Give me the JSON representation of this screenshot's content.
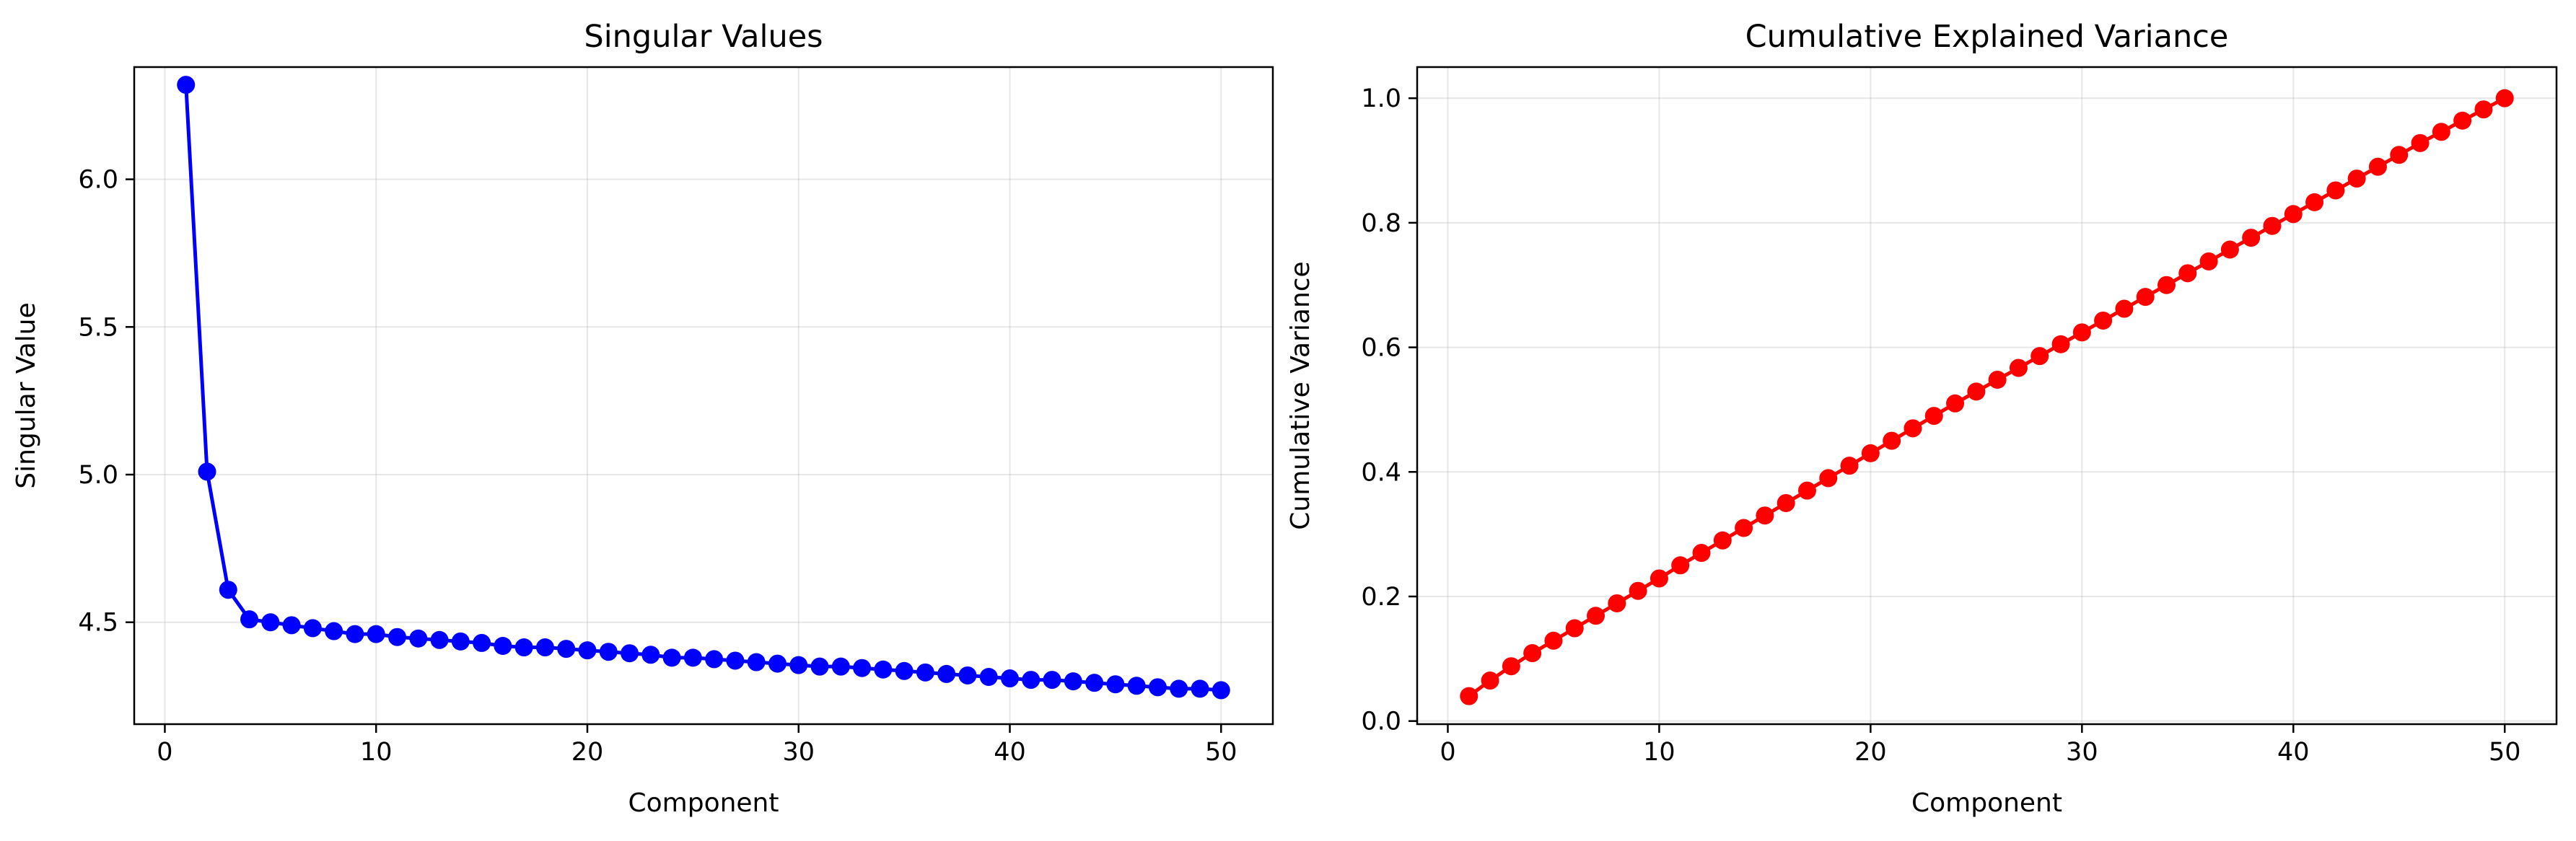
{
  "chart_data": [
    {
      "type": "line",
      "title": "Singular Values",
      "xlabel": "Component",
      "ylabel": "Singular Value",
      "xlim": [
        -1.45,
        52.45
      ],
      "ylim": [
        4.155,
        6.38
      ],
      "xticks": [
        0,
        10,
        20,
        30,
        40,
        50
      ],
      "yticks": [
        4.5,
        5.0,
        5.5,
        6.0
      ],
      "ytick_labels": [
        "4.5",
        "5.0",
        "5.5",
        "6.0"
      ],
      "grid": true,
      "series": [
        {
          "color": "#0000ff",
          "marker": "circle",
          "x": [
            1,
            2,
            3,
            4,
            5,
            6,
            7,
            8,
            9,
            10,
            11,
            12,
            13,
            14,
            15,
            16,
            17,
            18,
            19,
            20,
            21,
            22,
            23,
            24,
            25,
            26,
            27,
            28,
            29,
            30,
            31,
            32,
            33,
            34,
            35,
            36,
            37,
            38,
            39,
            40,
            41,
            42,
            43,
            44,
            45,
            46,
            47,
            48,
            49,
            50
          ],
          "values": [
            6.32,
            5.01,
            4.61,
            4.51,
            4.5,
            4.49,
            4.48,
            4.47,
            4.46,
            4.46,
            4.45,
            4.445,
            4.44,
            4.435,
            4.43,
            4.42,
            4.415,
            4.415,
            4.41,
            4.405,
            4.4,
            4.395,
            4.39,
            4.38,
            4.38,
            4.375,
            4.37,
            4.365,
            4.36,
            4.355,
            4.35,
            4.35,
            4.345,
            4.34,
            4.335,
            4.33,
            4.325,
            4.32,
            4.315,
            4.31,
            4.305,
            4.305,
            4.3,
            4.295,
            4.29,
            4.285,
            4.28,
            4.275,
            4.275,
            4.27
          ]
        }
      ]
    },
    {
      "type": "line",
      "title": "Cumulative Explained Variance",
      "xlabel": "Component",
      "ylabel": "Cumulative Variance",
      "xlim": [
        -1.45,
        52.45
      ],
      "ylim": [
        -0.005,
        1.05
      ],
      "xticks": [
        0,
        10,
        20,
        30,
        40,
        50
      ],
      "yticks": [
        0.0,
        0.2,
        0.4,
        0.6,
        0.8,
        1.0
      ],
      "ytick_labels": [
        "0.0",
        "0.2",
        "0.4",
        "0.6",
        "0.8",
        "1.0"
      ],
      "grid": true,
      "series": [
        {
          "color": "#ff0000",
          "marker": "circle",
          "x": [
            1,
            2,
            3,
            4,
            5,
            6,
            7,
            8,
            9,
            10,
            11,
            12,
            13,
            14,
            15,
            16,
            17,
            18,
            19,
            20,
            21,
            22,
            23,
            24,
            25,
            26,
            27,
            28,
            29,
            30,
            31,
            32,
            33,
            34,
            35,
            36,
            37,
            38,
            39,
            40,
            41,
            42,
            43,
            44,
            45,
            46,
            47,
            48,
            49,
            50
          ],
          "values": [
            0.04,
            0.065,
            0.088,
            0.109,
            0.129,
            0.149,
            0.169,
            0.189,
            0.209,
            0.229,
            0.25,
            0.27,
            0.29,
            0.31,
            0.33,
            0.35,
            0.37,
            0.39,
            0.41,
            0.43,
            0.45,
            0.47,
            0.49,
            0.51,
            0.529,
            0.548,
            0.567,
            0.586,
            0.605,
            0.624,
            0.643,
            0.662,
            0.681,
            0.7,
            0.719,
            0.738,
            0.757,
            0.776,
            0.795,
            0.814,
            0.833,
            0.852,
            0.871,
            0.89,
            0.909,
            0.928,
            0.946,
            0.964,
            0.982,
            1.0
          ]
        }
      ]
    }
  ]
}
